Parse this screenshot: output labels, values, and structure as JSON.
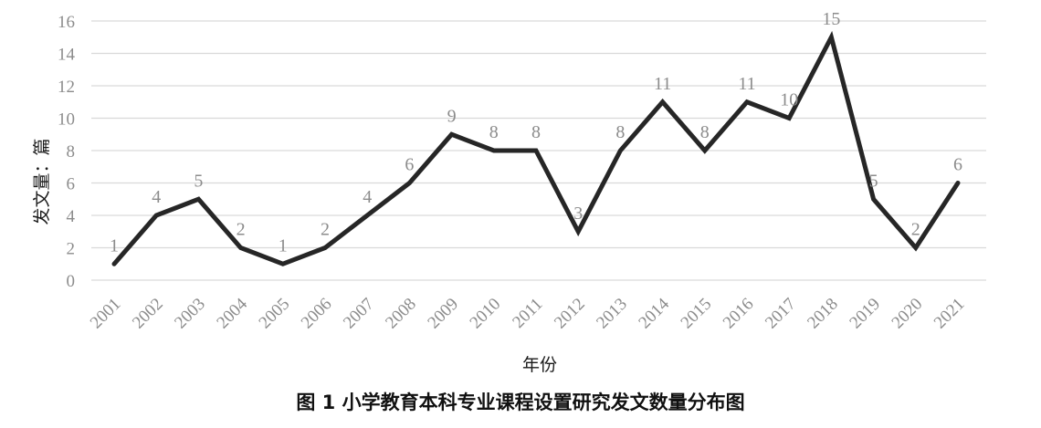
{
  "caption": "图 1    小学教育本科专业课程设置研究发文数量分布图",
  "chart_data": {
    "type": "line",
    "title": "",
    "xlabel": "年份",
    "ylabel": "发文量：篇",
    "ylim": [
      0,
      16
    ],
    "yticks": [
      0,
      2,
      4,
      6,
      8,
      10,
      12,
      14,
      16
    ],
    "grid": true,
    "line_color": "#262626",
    "grid_color": "#d9d9d9",
    "label_color": "#8c8c8c",
    "categories": [
      "2001",
      "2002",
      "2003",
      "2004",
      "2005",
      "2006",
      "2007",
      "2008",
      "2009",
      "2010",
      "2011",
      "2012",
      "2013",
      "2014",
      "2015",
      "2016",
      "2017",
      "2018",
      "2019",
      "2020",
      "2021"
    ],
    "values": [
      1,
      4,
      5,
      2,
      1,
      2,
      4,
      6,
      9,
      8,
      8,
      3,
      8,
      11,
      8,
      11,
      10,
      15,
      5,
      2,
      6
    ]
  }
}
